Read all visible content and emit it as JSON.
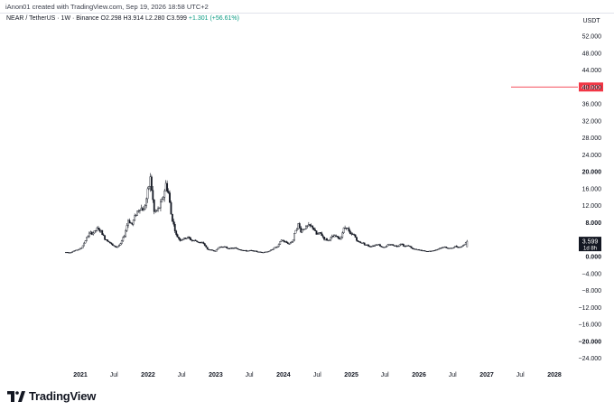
{
  "header": {
    "credit": "iAnon01 created with TradingView.com, Sep 19, 2026 18:58 UTC+2"
  },
  "legend": {
    "symbol": "NEAR / TetherUS · 1W · Binance",
    "open": "O2.298",
    "high": "H3.914",
    "low": "L2.280",
    "close": "C3.599",
    "change": "+1.301 (+56.61%)"
  },
  "price_axis": {
    "currency": "USDT",
    "labels": [
      "52.000",
      "48.000",
      "44.000",
      "40.000",
      "36.000",
      "32.000",
      "28.000",
      "24.000",
      "20.000",
      "16.000",
      "12.000",
      "8.000",
      "4.000",
      "0.000",
      "−4.000",
      "−8.000",
      "−12.000",
      "−16.000",
      "−20.000",
      "−24.000"
    ],
    "bold_labels": [
      "20.000",
      "8.000",
      "0.000",
      "−20.000"
    ],
    "last_price_label": "3.599",
    "last_price_countdown": "1d 8h",
    "last_price_color": "#131722"
  },
  "time_axis": {
    "labels": [
      "2021",
      "Jul",
      "2022",
      "Jul",
      "2023",
      "Jul",
      "2024",
      "Jul",
      "2025",
      "Jul",
      "2026",
      "Jul",
      "2027",
      "Jul",
      "2028"
    ],
    "bold_labels": [
      "2021",
      "2022",
      "2023",
      "2024",
      "2025",
      "2026",
      "2027",
      "2028"
    ]
  },
  "horizontal_line": {
    "price": 40,
    "label": "40.000",
    "color": "#f23645"
  },
  "chart_data": {
    "type": "candlestick",
    "title": "",
    "xlabel": "",
    "ylabel": "",
    "ylim": [
      -26,
      54
    ],
    "xlim": [
      "2020-08-15",
      "2028-06-30"
    ],
    "grid": false,
    "candle_color": "#131722",
    "series": [
      {
        "name": "NEAR / TetherUS",
        "points": [
          [
            "2020-10-15",
            1.0
          ],
          [
            "2020-11-05",
            0.9
          ],
          [
            "2020-11-26",
            1.3
          ],
          [
            "2020-12-17",
            1.6
          ],
          [
            "2021-01-07",
            2.0
          ],
          [
            "2021-01-28",
            3.8
          ],
          [
            "2021-02-18",
            5.4
          ],
          [
            "2021-03-11",
            5.6
          ],
          [
            "2021-04-01",
            6.5
          ],
          [
            "2021-04-22",
            5.9
          ],
          [
            "2021-05-13",
            4.2
          ],
          [
            "2021-06-03",
            3.6
          ],
          [
            "2021-06-24",
            2.6
          ],
          [
            "2021-07-15",
            2.2
          ],
          [
            "2021-08-05",
            2.9
          ],
          [
            "2021-08-26",
            5.0
          ],
          [
            "2021-09-16",
            8.6
          ],
          [
            "2021-10-07",
            7.6
          ],
          [
            "2021-10-28",
            10.2
          ],
          [
            "2021-11-18",
            11.5
          ],
          [
            "2021-12-09",
            11.0
          ],
          [
            "2021-12-30",
            15.0
          ],
          [
            "2022-01-13",
            18.5
          ],
          [
            "2022-02-03",
            10.5
          ],
          [
            "2022-02-24",
            11.0
          ],
          [
            "2022-03-17",
            13.0
          ],
          [
            "2022-04-07",
            17.0
          ],
          [
            "2022-04-21",
            15.0
          ],
          [
            "2022-05-05",
            10.0
          ],
          [
            "2022-05-19",
            7.5
          ],
          [
            "2022-06-02",
            5.0
          ],
          [
            "2022-06-23",
            3.9
          ],
          [
            "2022-07-14",
            4.2
          ],
          [
            "2022-08-04",
            4.5
          ],
          [
            "2022-08-25",
            3.8
          ],
          [
            "2022-09-15",
            3.7
          ],
          [
            "2022-10-06",
            3.3
          ],
          [
            "2022-10-27",
            3.1
          ],
          [
            "2022-11-17",
            1.7
          ],
          [
            "2022-12-08",
            1.5
          ],
          [
            "2022-12-29",
            1.3
          ],
          [
            "2023-01-19",
            2.2
          ],
          [
            "2023-02-09",
            2.4
          ],
          [
            "2023-03-02",
            2.0
          ],
          [
            "2023-03-23",
            1.9
          ],
          [
            "2023-04-13",
            2.0
          ],
          [
            "2023-05-04",
            1.7
          ],
          [
            "2023-05-25",
            1.5
          ],
          [
            "2023-06-15",
            1.3
          ],
          [
            "2023-07-06",
            1.4
          ],
          [
            "2023-07-27",
            1.3
          ],
          [
            "2023-08-17",
            1.1
          ],
          [
            "2023-09-07",
            1.0
          ],
          [
            "2023-09-28",
            1.1
          ],
          [
            "2023-10-19",
            1.3
          ],
          [
            "2023-11-09",
            2.0
          ],
          [
            "2023-11-30",
            2.3
          ],
          [
            "2023-12-21",
            3.9
          ],
          [
            "2024-01-11",
            3.4
          ],
          [
            "2024-02-01",
            3.0
          ],
          [
            "2024-02-22",
            3.9
          ],
          [
            "2024-03-07",
            6.5
          ],
          [
            "2024-03-21",
            7.5
          ],
          [
            "2024-04-04",
            6.0
          ],
          [
            "2024-04-25",
            6.8
          ],
          [
            "2024-05-16",
            7.2
          ],
          [
            "2024-06-06",
            7.0
          ],
          [
            "2024-06-27",
            5.2
          ],
          [
            "2024-07-18",
            5.5
          ],
          [
            "2024-08-08",
            4.2
          ],
          [
            "2024-08-29",
            3.8
          ],
          [
            "2024-09-19",
            4.6
          ],
          [
            "2024-10-10",
            4.8
          ],
          [
            "2024-10-31",
            4.1
          ],
          [
            "2024-11-21",
            6.5
          ],
          [
            "2024-12-05",
            7.2
          ],
          [
            "2024-12-26",
            5.2
          ],
          [
            "2025-01-16",
            5.1
          ],
          [
            "2025-02-06",
            3.4
          ],
          [
            "2025-02-27",
            3.3
          ],
          [
            "2025-03-20",
            2.8
          ],
          [
            "2025-04-10",
            2.4
          ],
          [
            "2025-05-01",
            2.6
          ],
          [
            "2025-05-22",
            3.0
          ],
          [
            "2025-06-12",
            2.3
          ],
          [
            "2025-07-03",
            2.2
          ],
          [
            "2025-07-24",
            2.9
          ],
          [
            "2025-08-14",
            2.7
          ],
          [
            "2025-09-04",
            2.4
          ],
          [
            "2025-09-25",
            3.1
          ],
          [
            "2025-10-16",
            2.4
          ],
          [
            "2025-11-06",
            2.6
          ],
          [
            "2025-11-27",
            1.8
          ],
          [
            "2025-12-18",
            1.6
          ],
          [
            "2026-01-08",
            1.5
          ],
          [
            "2026-01-29",
            1.3
          ],
          [
            "2026-02-19",
            1.2
          ],
          [
            "2026-03-12",
            1.4
          ],
          [
            "2026-04-02",
            1.5
          ],
          [
            "2026-04-23",
            1.9
          ],
          [
            "2026-05-14",
            2.3
          ],
          [
            "2026-06-04",
            2.0
          ],
          [
            "2026-06-25",
            1.9
          ],
          [
            "2026-07-16",
            2.4
          ],
          [
            "2026-08-06",
            2.2
          ],
          [
            "2026-08-27",
            2.6
          ],
          [
            "2026-09-17",
            3.599
          ]
        ]
      }
    ]
  }
}
